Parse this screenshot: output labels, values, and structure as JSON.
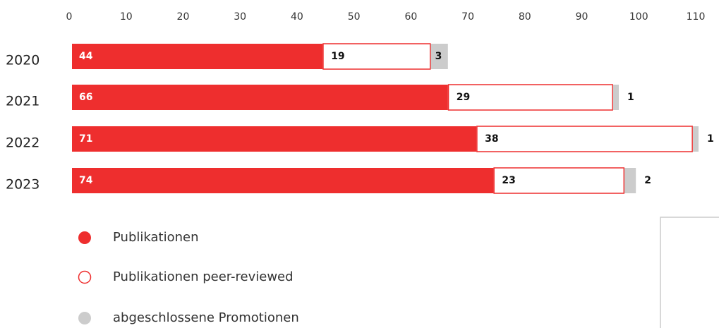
{
  "chart_data": {
    "type": "bar",
    "orientation": "horizontal",
    "stacked": true,
    "categories": [
      "2020",
      "2021",
      "2022",
      "2023"
    ],
    "series": [
      {
        "name": "Publikationen",
        "color": "#ee2e2e",
        "values": [
          44,
          66,
          71,
          74
        ]
      },
      {
        "name": "Publikationen peer-reviewed",
        "color": "#ffffff",
        "values": [
          19,
          29,
          38,
          23
        ]
      },
      {
        "name": "abgeschlossene Promotionen",
        "color": "#cccccc",
        "values": [
          3,
          1,
          1,
          2
        ]
      }
    ],
    "xlim": [
      0,
      110
    ],
    "xticks": [
      0,
      10,
      20,
      30,
      40,
      50,
      60,
      70,
      80,
      90,
      100,
      110
    ],
    "grid": false,
    "legend": "bottom-left"
  }
}
